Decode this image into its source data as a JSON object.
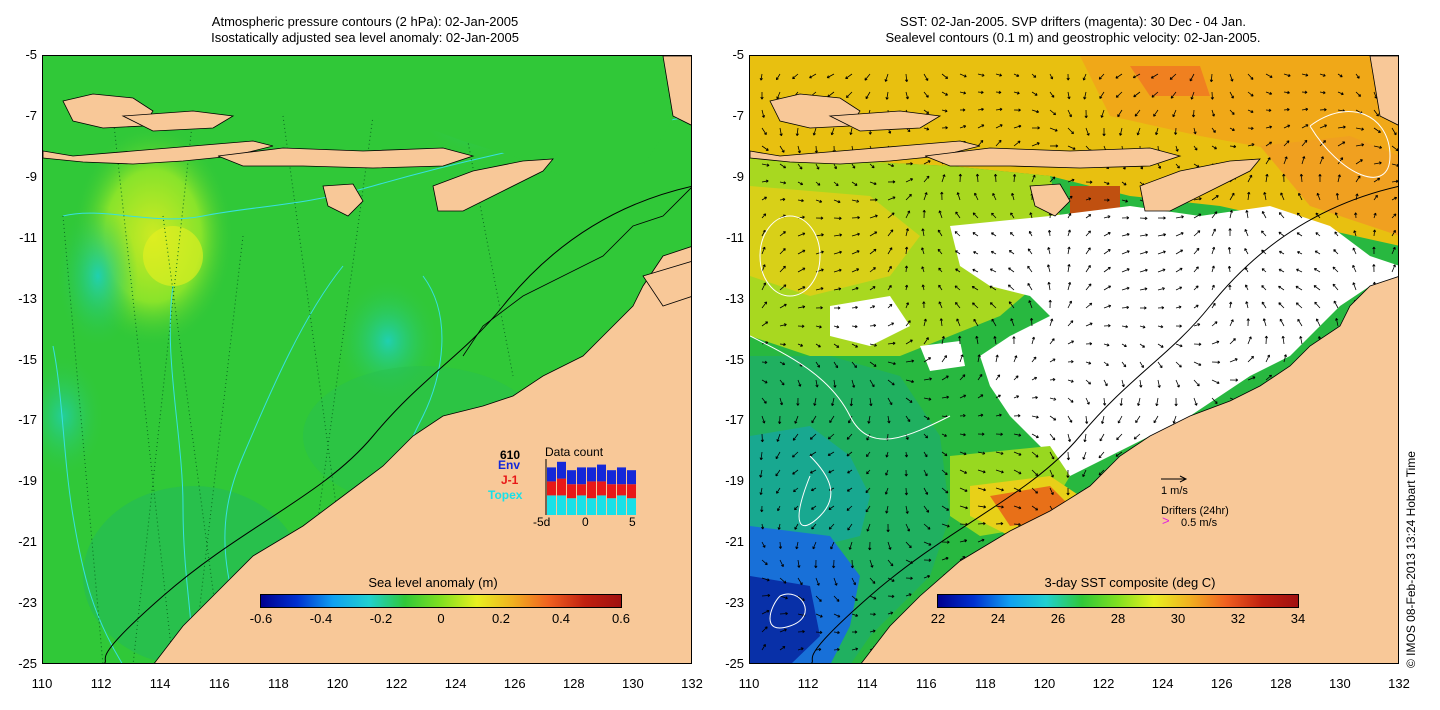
{
  "left_panel": {
    "title_line1": "Atmospheric pressure contours (2 hPa): 02-Jan-2005",
    "title_line2": "Isostatically adjusted sea level anomaly: 02-Jan-2005",
    "y_ticks": [
      "-5",
      "-7",
      "-9",
      "-11",
      "-13",
      "-15",
      "-17",
      "-19",
      "-21",
      "-23",
      "-25"
    ],
    "x_ticks": [
      "110",
      "112",
      "114",
      "116",
      "118",
      "120",
      "122",
      "124",
      "126",
      "128",
      "130",
      "132"
    ],
    "colorbar": {
      "label": "Sea level anomaly (m)",
      "ticks": [
        "-0.6",
        "-0.4",
        "-0.2",
        "0",
        "0.2",
        "0.4",
        "0.6"
      ]
    },
    "data_count": {
      "title": "Data count",
      "total": "610",
      "series": [
        "Env",
        "J-1",
        "Topex"
      ],
      "series_colors": [
        "#1428d8",
        "#e81818",
        "#18e0e8"
      ],
      "x_ticks": [
        "-5d",
        "0",
        "5"
      ],
      "bars": [
        {
          "topex": 0.35,
          "j1": 0.25,
          "env": 0.25
        },
        {
          "topex": 0.35,
          "j1": 0.3,
          "env": 0.3
        },
        {
          "topex": 0.3,
          "j1": 0.25,
          "env": 0.25
        },
        {
          "topex": 0.35,
          "j1": 0.2,
          "env": 0.3
        },
        {
          "topex": 0.3,
          "j1": 0.3,
          "env": 0.25
        },
        {
          "topex": 0.35,
          "j1": 0.25,
          "env": 0.3
        },
        {
          "topex": 0.3,
          "j1": 0.25,
          "env": 0.25
        },
        {
          "topex": 0.35,
          "j1": 0.2,
          "env": 0.3
        },
        {
          "topex": 0.3,
          "j1": 0.25,
          "env": 0.25
        }
      ]
    }
  },
  "right_panel": {
    "title_line1": "SST: 02-Jan-2005. SVP drifters (magenta): 30 Dec - 04 Jan.",
    "title_line2": "Sealevel contours (0.1 m) and geostrophic velocity: 02-Jan-2005.",
    "y_ticks": [
      "-5",
      "-7",
      "-9",
      "-11",
      "-13",
      "-15",
      "-17",
      "-19",
      "-21",
      "-23",
      "-25"
    ],
    "x_ticks": [
      "110",
      "112",
      "114",
      "116",
      "118",
      "120",
      "122",
      "124",
      "126",
      "128",
      "130",
      "132"
    ],
    "colorbar": {
      "label": "3-day SST composite (deg C)",
      "ticks": [
        "22",
        "24",
        "26",
        "28",
        "30",
        "32",
        "34"
      ]
    },
    "velocity_legend": "1 m/s",
    "drifter_legend_title": "Drifters (24hr)",
    "drifter_legend_value": "0.5 m/s",
    "drifter_marker": ">"
  },
  "copyright": "© IMOS 08-Feb-2013 13:24 Hobart Time",
  "colors": {
    "land": "#f8c898",
    "sla_background": "#30c838",
    "sst_missing": "#ffffff",
    "contour_cyan": "#38e0e0"
  }
}
